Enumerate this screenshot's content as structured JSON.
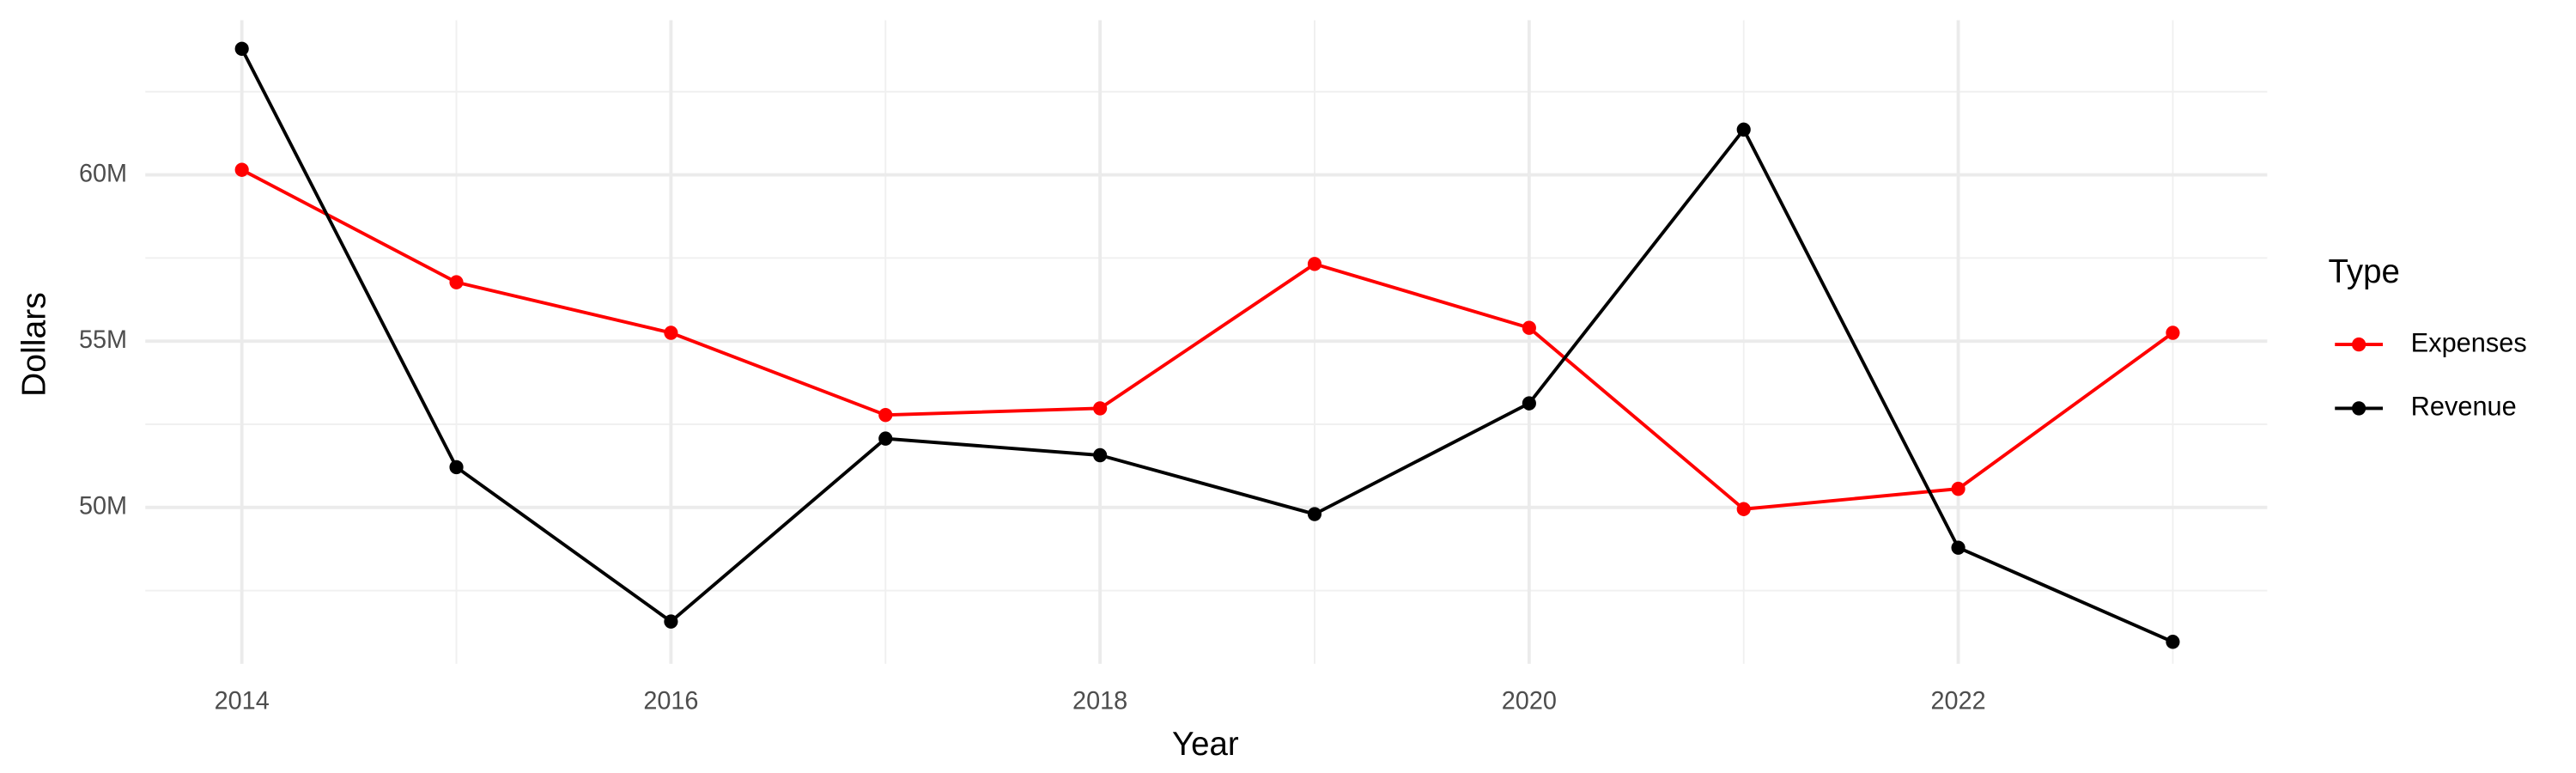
{
  "chart_data": {
    "type": "line",
    "x_label": "Year",
    "y_label": "Dollars",
    "legend_title": "Type",
    "x": [
      2014,
      2015,
      2016,
      2017,
      2018,
      2019,
      2020,
      2021,
      2022,
      2023
    ],
    "series": [
      {
        "name": "Expenses",
        "color": "#ff0000",
        "values": [
          60150000,
          56770000,
          55250000,
          52780000,
          52980000,
          57320000,
          55400000,
          49950000,
          50560000,
          55250000
        ]
      },
      {
        "name": "Revenue",
        "color": "#000000",
        "values": [
          63790000,
          51210000,
          46570000,
          52070000,
          51570000,
          49800000,
          53130000,
          61360000,
          48790000,
          45960000
        ]
      }
    ],
    "xlim": [
      2013.55,
      2023.44
    ],
    "xticks": [
      2014,
      2016,
      2018,
      2020,
      2022
    ],
    "ylim": [
      45300000,
      64650000
    ],
    "yticks": [
      {
        "value": 50000000,
        "label": "50M"
      },
      {
        "value": 55000000,
        "label": "55M"
      },
      {
        "value": 60000000,
        "label": "60M"
      }
    ],
    "grid": true,
    "minor_grid": true,
    "legend": "right"
  }
}
